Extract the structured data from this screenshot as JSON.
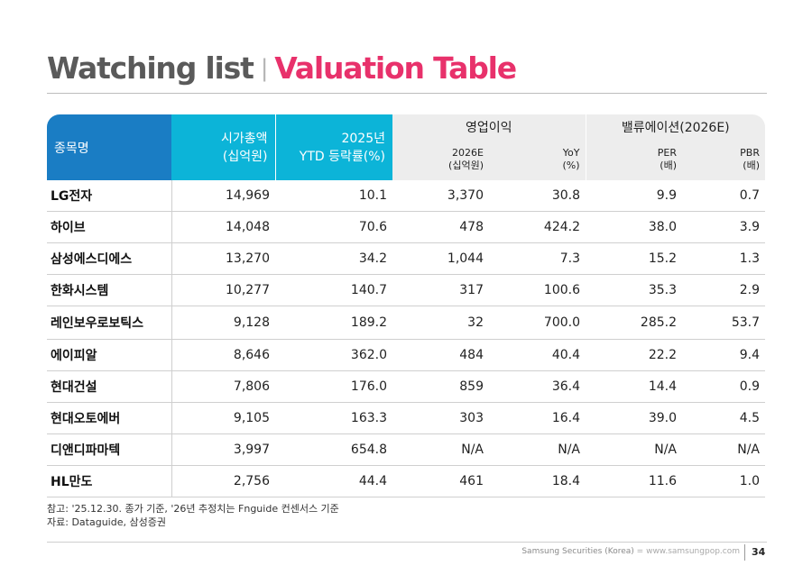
{
  "title": {
    "part1": "Watching list",
    "separator": "|",
    "part2": "Valuation Table"
  },
  "colors": {
    "accent_pink": "#e8316b",
    "header_blue": "#1a7dc4",
    "header_cyan": "#0cb4d8",
    "header_gray": "#ededed"
  },
  "table": {
    "header": {
      "name": "종목명",
      "market_cap": [
        "시가총액",
        "(십억원)"
      ],
      "ytd": [
        "2025년",
        "YTD 등락률(%)"
      ],
      "op_group": "영업이익",
      "val_group": "밸류에이션(2026E)",
      "op_2026e": [
        "2026E",
        "(십억원)"
      ],
      "op_yoy": [
        "YoY",
        "(%)"
      ],
      "per": [
        "PER",
        "(배)"
      ],
      "pbr": [
        "PBR",
        "(배)"
      ]
    },
    "rows": [
      [
        "LG전자",
        "14,969",
        "10.1",
        "3,370",
        "30.8",
        "9.9",
        "0.7"
      ],
      [
        "하이브",
        "14,048",
        "70.6",
        "478",
        "424.2",
        "38.0",
        "3.9"
      ],
      [
        "삼성에스디에스",
        "13,270",
        "34.2",
        "1,044",
        "7.3",
        "15.2",
        "1.3"
      ],
      [
        "한화시스템",
        "10,277",
        "140.7",
        "317",
        "100.6",
        "35.3",
        "2.9"
      ],
      [
        "레인보우로보틱스",
        "9,128",
        "189.2",
        "32",
        "700.0",
        "285.2",
        "53.7"
      ],
      [
        "에이피알",
        "8,646",
        "362.0",
        "484",
        "40.4",
        "22.2",
        "9.4"
      ],
      [
        "현대건설",
        "7,806",
        "176.0",
        "859",
        "36.4",
        "14.4",
        "0.9"
      ],
      [
        "현대오토에버",
        "9,105",
        "163.3",
        "303",
        "16.4",
        "39.0",
        "4.5"
      ],
      [
        "디앤디파마텍",
        "3,997",
        "654.8",
        "N/A",
        "N/A",
        "N/A",
        "N/A"
      ],
      [
        "HL만도",
        "2,756",
        "44.4",
        "461",
        "18.4",
        "11.6",
        "1.0"
      ]
    ]
  },
  "notes": [
    "참고: '25.12.30. 종가 기준, '26년 추정치는 Fnguide 컨센서스 기준",
    "자료: Dataguide, 삼성증권"
  ],
  "footer": {
    "company": "Samsung Securities (Korea)",
    "divider": "=",
    "website": "www.samsungpop.com",
    "page": "34"
  }
}
